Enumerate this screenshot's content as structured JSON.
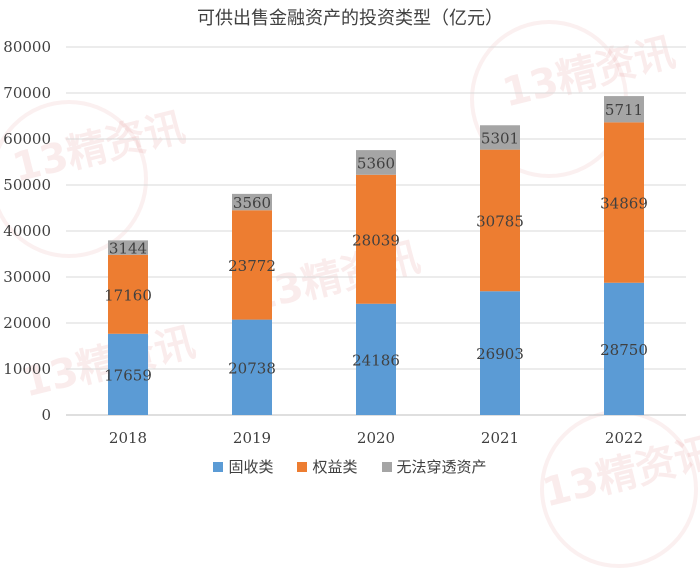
{
  "chart_data": {
    "type": "bar",
    "stacked": true,
    "title": "可供出售金融资产的投资类型（亿元）",
    "categories": [
      "2018",
      "2019",
      "2020",
      "2021",
      "2022"
    ],
    "series": [
      {
        "name": "固收类",
        "color": "#5b9bd5",
        "values": [
          17659,
          20738,
          24186,
          26903,
          28750
        ]
      },
      {
        "name": "权益类",
        "color": "#ed7d31",
        "values": [
          17160,
          23772,
          28039,
          30785,
          34869
        ]
      },
      {
        "name": "无法穿透资产",
        "color": "#a5a5a5",
        "values": [
          3144,
          3560,
          5360,
          5301,
          5711
        ]
      }
    ],
    "yticks": [
      "0",
      "10000",
      "20000",
      "30000",
      "40000",
      "50000",
      "60000",
      "70000",
      "80000"
    ],
    "ylim": [
      0,
      80000
    ],
    "grid": true,
    "legend_position": "bottom"
  },
  "watermark_text": "13精资讯"
}
